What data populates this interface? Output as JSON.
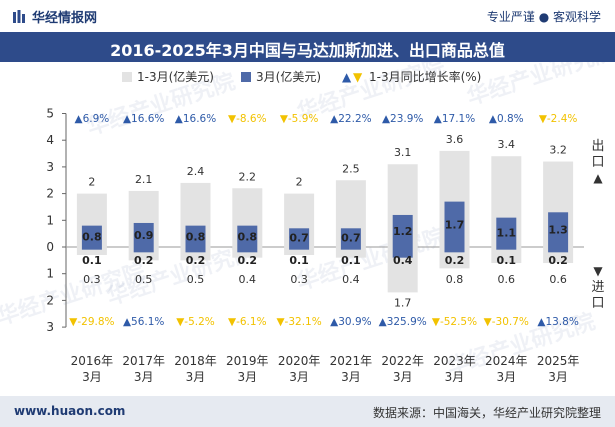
{
  "header": {
    "brand": "华经情报网",
    "slogan": "专业严谨 ● 客观科学"
  },
  "title": "2016-2025年3月中国与马达加斯加进、出口商品总值",
  "footer": {
    "website": "www.huaon.com",
    "source": "数据来源：中国海关，华经产业研究院整理"
  },
  "side_labels": {
    "export": "出口",
    "import": "进口"
  },
  "watermark": "华经产业研究院",
  "colors": {
    "cumulative_bar": "#e3e3e3",
    "monthly_bar": "#4f6aa8",
    "up": "#2e5aa8",
    "down": "#f2c200",
    "axis": "#666666"
  },
  "chart_data": {
    "type": "bar",
    "categories": [
      "2016年\n3月",
      "2017年\n3月",
      "2018年\n3月",
      "2019年\n3月",
      "2020年\n3月",
      "2021年\n3月",
      "2022年\n3月",
      "2023年\n3月",
      "2024年\n3月",
      "2025年\n3月"
    ],
    "legend": [
      "1-3月(亿美元)",
      "3月(亿美元)",
      "1-3月同比增长率(%)"
    ],
    "ylim_export": [
      0,
      5
    ],
    "ylim_import": [
      0,
      3
    ],
    "export_ticks": [
      "0",
      "1",
      "2",
      "3",
      "4",
      "5"
    ],
    "import_ticks": [
      "1",
      "2",
      "3"
    ],
    "export": {
      "cumulative": [
        2,
        2.1,
        2.4,
        2.2,
        2,
        2.5,
        3.1,
        3.6,
        3.4,
        3.2
      ],
      "monthly": [
        0.8,
        0.9,
        0.8,
        0.8,
        0.7,
        0.7,
        1.2,
        1.7,
        1.1,
        1.3
      ],
      "growth_labels": [
        "6.9%",
        "16.6%",
        "16.6%",
        "-8.6%",
        "-5.9%",
        "22.2%",
        "23.9%",
        "17.1%",
        "0.8%",
        "-2.4%"
      ]
    },
    "import": {
      "cumulative": [
        0.3,
        0.5,
        0.5,
        0.4,
        0.3,
        0.4,
        1.7,
        0.8,
        0.6,
        0.6
      ],
      "monthly": [
        0.1,
        0.2,
        0.2,
        0.2,
        0.1,
        0.1,
        0.4,
        0.2,
        0.1,
        0.2
      ],
      "growth_labels": [
        "-29.8%",
        "56.1%",
        "-5.2%",
        "-6.1%",
        "-32.1%",
        "30.9%",
        "325.9%",
        "-52.5%",
        "-30.7%",
        "13.8%"
      ]
    }
  }
}
